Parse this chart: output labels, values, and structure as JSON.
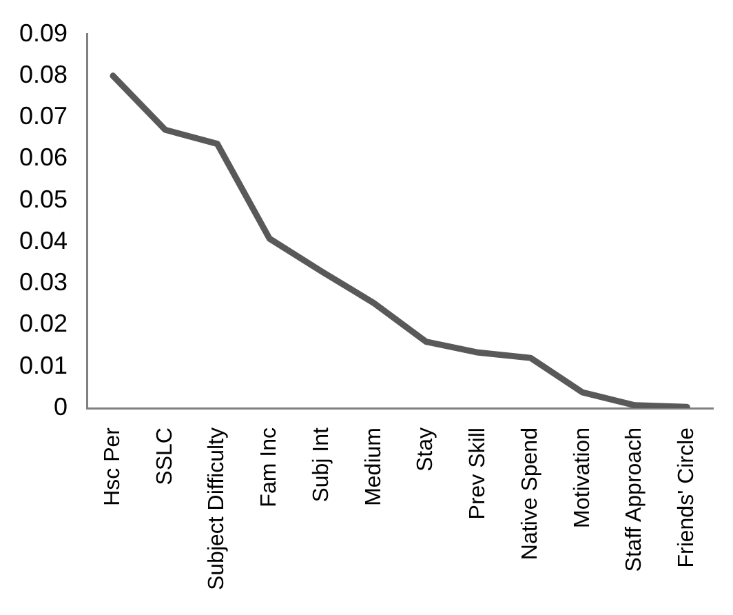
{
  "chart_data": {
    "type": "line",
    "categories": [
      "Hsc Per",
      "SSLC",
      "Subject Difficulty",
      "Fam Inc",
      "Subj Int",
      "Medium",
      "Stay",
      "Prev Skill",
      "Native Spend",
      "Motivation",
      "Staff Approach",
      "Friends' Circle"
    ],
    "series": [
      {
        "color": "#595959",
        "values": [
          0.08,
          0.067,
          0.0636,
          0.0408,
          0.0329,
          0.0253,
          0.016,
          0.0134,
          0.0121,
          0.0038,
          0.0007,
          0.0003
        ]
      }
    ],
    "ylim": [
      0,
      0.09
    ],
    "yticks": [
      0,
      0.01,
      0.02,
      0.03,
      0.04,
      0.05,
      0.06,
      0.07,
      0.08,
      0.09
    ],
    "grid": false,
    "legend": false,
    "marker": "none",
    "line_style": "solid"
  }
}
